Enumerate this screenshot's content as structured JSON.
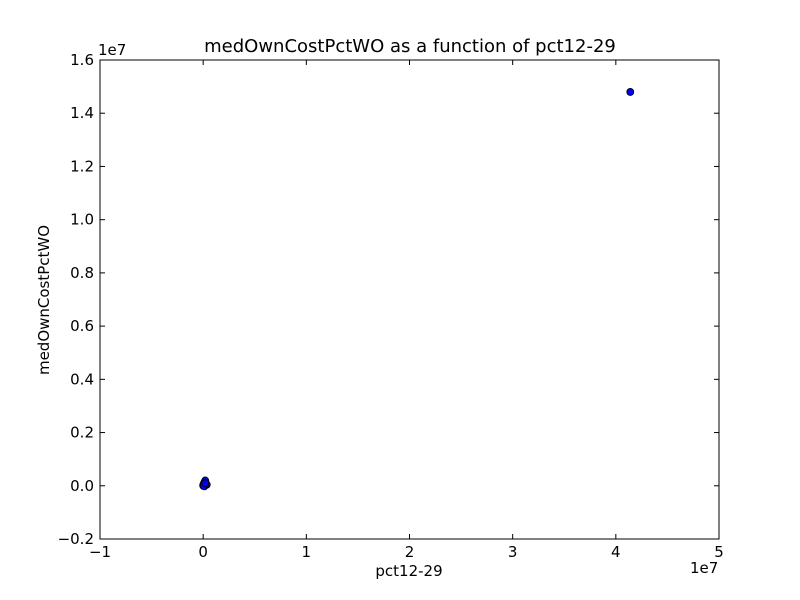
{
  "chart_data": {
    "type": "scatter",
    "title": "medOwnCostPctWO as a function of pct12-29",
    "xlabel": "pct12-29",
    "ylabel": "medOwnCostPctWO",
    "x_offset_label": "1e7",
    "y_offset_label": "1e7",
    "xlim": [
      -10000000,
      50000000
    ],
    "ylim": [
      -2000000,
      16000000
    ],
    "x_ticks": [
      -10000000,
      0,
      10000000,
      20000000,
      30000000,
      40000000,
      50000000
    ],
    "x_tick_labels": [
      "−1",
      "0",
      "1",
      "2",
      "3",
      "4",
      "5"
    ],
    "y_ticks": [
      -2000000,
      0,
      2000000,
      4000000,
      6000000,
      8000000,
      10000000,
      12000000,
      14000000,
      16000000
    ],
    "y_tick_labels": [
      "−0.2",
      "0.0",
      "0.2",
      "0.4",
      "0.6",
      "0.8",
      "1.0",
      "1.2",
      "1.4",
      "1.6"
    ],
    "grid": false,
    "marker_color": "#0000ff",
    "points": [
      {
        "x": 41400000,
        "y": 14800000
      },
      {
        "x": 0,
        "y": 0
      },
      {
        "x": 50000,
        "y": 30000
      },
      {
        "x": 100000,
        "y": 80000
      },
      {
        "x": 150000,
        "y": 150000
      },
      {
        "x": 200000,
        "y": 200000
      },
      {
        "x": 250000,
        "y": 120000
      },
      {
        "x": 300000,
        "y": 60000
      },
      {
        "x": 350000,
        "y": 40000
      },
      {
        "x": 120000,
        "y": -20000
      },
      {
        "x": 80000,
        "y": 100000
      },
      {
        "x": 20000,
        "y": 50000
      },
      {
        "x": 180000,
        "y": 20000
      },
      {
        "x": 60000,
        "y": -10000
      },
      {
        "x": 220000,
        "y": 90000
      }
    ]
  }
}
